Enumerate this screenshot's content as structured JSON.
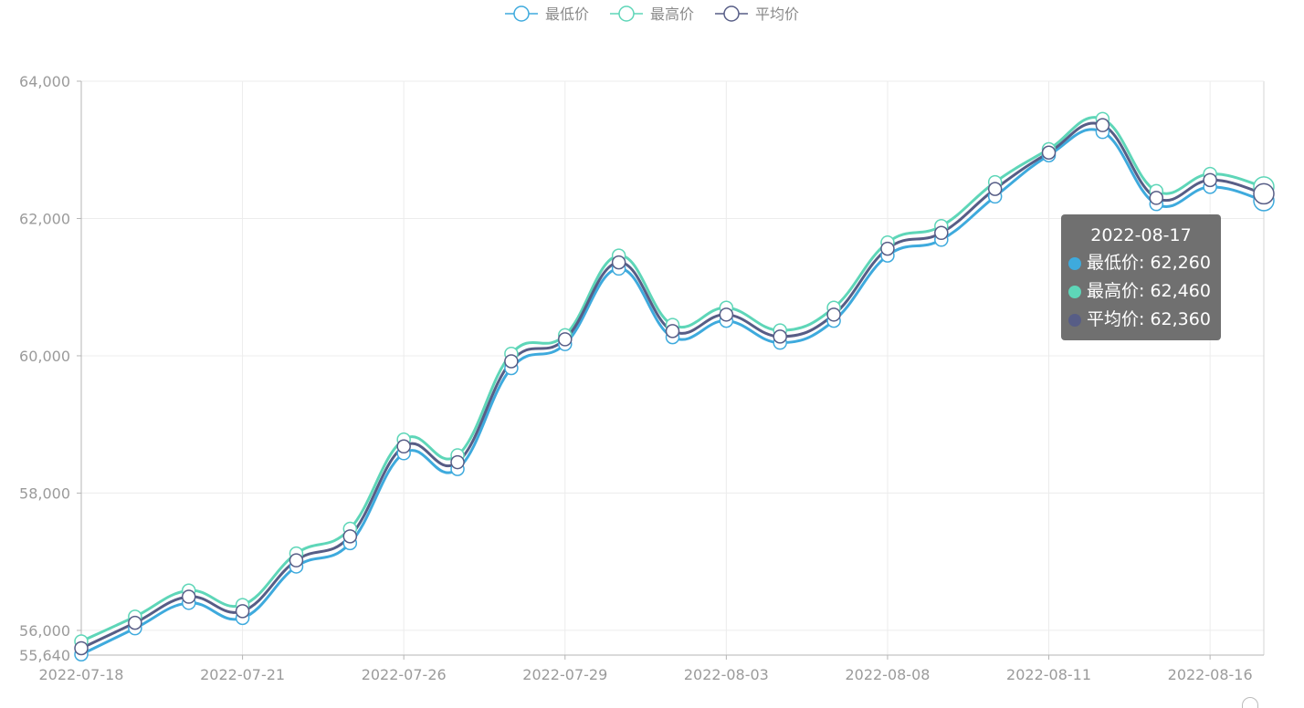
{
  "legend": {
    "items": [
      {
        "label": "最低价",
        "color": "#3eaadd"
      },
      {
        "label": "最高价",
        "color": "#5ed6b8"
      },
      {
        "label": "平均价",
        "color": "#575d86"
      }
    ]
  },
  "tooltip": {
    "title": "2022-08-17",
    "rows": [
      {
        "text": "最低价: 62,260",
        "color": "#3eaadd"
      },
      {
        "text": "最高价: 62,460",
        "color": "#5ed6b8"
      },
      {
        "text": "平均价: 62,360",
        "color": "#575d86"
      }
    ]
  },
  "chart_data": {
    "type": "line",
    "smooth": true,
    "grid": true,
    "legend_position": "top-center",
    "x": [
      "2022-07-18",
      "2022-07-19",
      "2022-07-20",
      "2022-07-21",
      "2022-07-22",
      "2022-07-23",
      "2022-07-26",
      "2022-07-27",
      "2022-07-28",
      "2022-07-29",
      "2022-07-30",
      "2022-08-01",
      "2022-08-03",
      "2022-08-04",
      "2022-08-05",
      "2022-08-08",
      "2022-08-09",
      "2022-08-10",
      "2022-08-11",
      "2022-08-12",
      "2022-08-15",
      "2022-08-16",
      "2022-08-17"
    ],
    "x_tick_labels": [
      "2022-07-18",
      "2022-07-21",
      "2022-07-26",
      "2022-07-29",
      "2022-08-03",
      "2022-08-08",
      "2022-08-11",
      "2022-08-16"
    ],
    "ylim": [
      55640,
      64000
    ],
    "y_tick_labels": [
      "55,640",
      "56,000",
      "58,000",
      "60,000",
      "62,000",
      "64,000"
    ],
    "series": [
      {
        "name": "最低价",
        "values": [
          55650,
          56030,
          56400,
          56180,
          56930,
          57270,
          58580,
          58350,
          59820,
          60170,
          61270,
          60270,
          60510,
          60190,
          60510,
          61460,
          61690,
          62320,
          62920,
          63260,
          62210,
          62460,
          62260
        ]
      },
      {
        "name": "最高价",
        "values": [
          55840,
          56200,
          56580,
          56370,
          57120,
          57480,
          58780,
          58550,
          60030,
          60300,
          61460,
          60450,
          60700,
          60370,
          60700,
          61650,
          61890,
          62530,
          63010,
          63450,
          62400,
          62650,
          62460
        ]
      },
      {
        "name": "平均价",
        "values": [
          55740,
          56110,
          56490,
          56280,
          57020,
          57370,
          58680,
          58450,
          59920,
          60240,
          61360,
          60360,
          60600,
          60280,
          60600,
          61560,
          61790,
          62430,
          62960,
          63360,
          62300,
          62560,
          62360
        ]
      }
    ],
    "highlighted_category": "2022-08-17"
  }
}
